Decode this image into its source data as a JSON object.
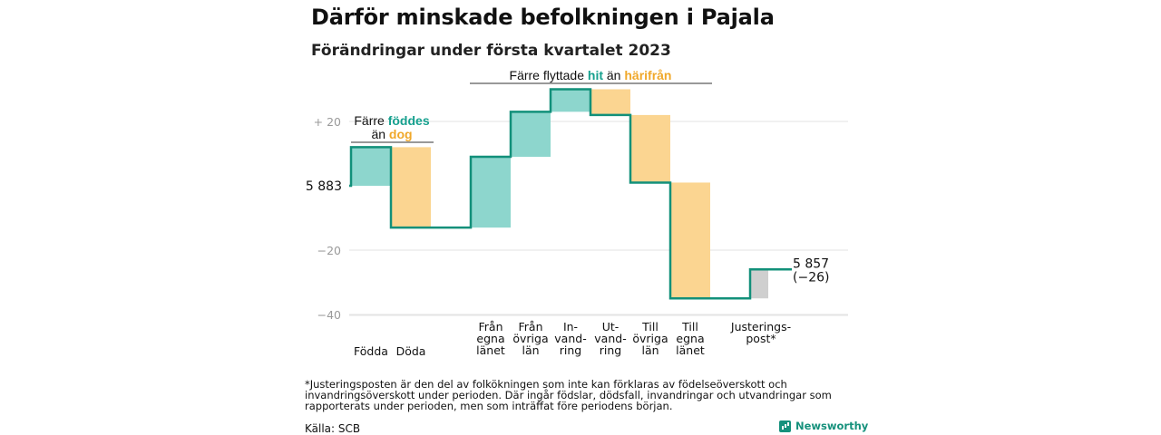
{
  "header": {
    "title": "Därför minskade befolkningen i Pajala",
    "subtitle": "Förändringar under första kvartalet 2023"
  },
  "colors": {
    "positive": "#8dd6cd",
    "negative": "#fbd591",
    "adjustment": "#cfcfcf",
    "line": "#12907a",
    "teal_text": "#16a08e",
    "orange_text": "#f0a82a",
    "grid": "#e3e3e3",
    "tick": "#9a9a9a"
  },
  "chart_data": {
    "type": "waterfall",
    "start_value": 5883,
    "end_value": 5857,
    "ylim": [
      -45,
      30
    ],
    "yticks": [
      {
        "value": 20,
        "label": "+ 20"
      },
      {
        "value": 0,
        "label": "5 883"
      },
      {
        "value": -20,
        "label": "−20"
      },
      {
        "value": -40,
        "label": "−40"
      }
    ],
    "steps": [
      {
        "label": "Födda",
        "value": 12,
        "kind": "positive"
      },
      {
        "label": "Döda",
        "value": -25,
        "kind": "negative"
      },
      {
        "label": "Från\negna\nlänet",
        "value": 22,
        "kind": "positive"
      },
      {
        "label": "Från\növriga\nlän",
        "value": 14,
        "kind": "positive"
      },
      {
        "label": "In-\nvand-\nring",
        "value": 7,
        "kind": "positive"
      },
      {
        "label": "Ut-\nvand-\nring",
        "value": -8,
        "kind": "negative"
      },
      {
        "label": "Till\növriga\nlän",
        "value": -21,
        "kind": "negative"
      },
      {
        "label": "Till\negna\nlänet",
        "value": -36,
        "kind": "negative"
      },
      {
        "label": "Justerings-\npost*",
        "value": 9,
        "kind": "adjustment"
      }
    ],
    "end_label": "5 857",
    "end_change": "(−26)",
    "annotations": {
      "births_deaths": [
        "Färre ",
        "föddes",
        "än ",
        "dog"
      ],
      "migration": [
        "Färre flyttade ",
        "hit",
        " än ",
        "härifrån"
      ]
    }
  },
  "footer": {
    "footnote": "*Justeringsposten är den del av folkökningen som inte kan förklaras av födelseöverskott och invandringsöverskott under perioden. Där ingår födslar, dödsfall, invandringar och utvandringar som rapporterats under perioden, men som inträffat före periodens början.",
    "source": "Källa: SCB",
    "brand": "Newsworthy",
    "brand_icon": "bar-chart-icon"
  }
}
